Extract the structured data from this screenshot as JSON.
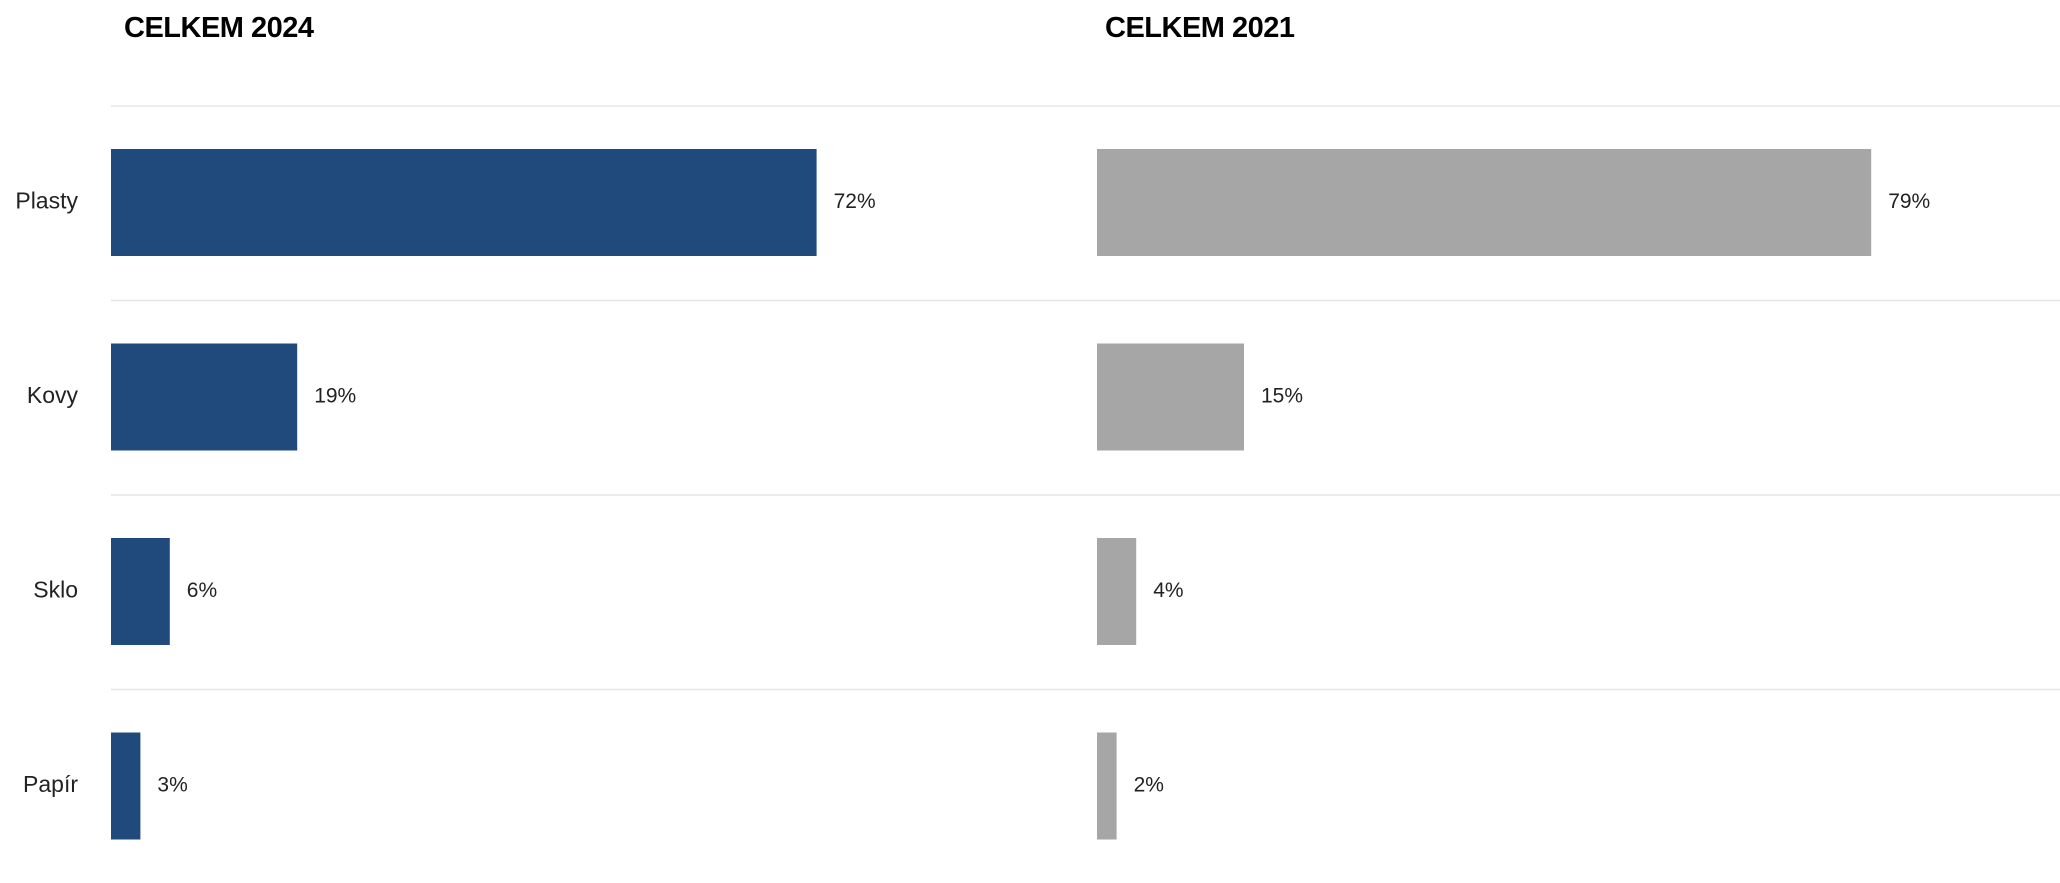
{
  "chart_data": {
    "type": "bar",
    "orientation": "horizontal",
    "categories": [
      "Plasty",
      "Kovy",
      "Sklo",
      "Papír"
    ],
    "series": [
      {
        "title": "CELKEM 2024",
        "values": [
          72,
          19,
          6,
          3
        ],
        "labels": [
          "72%",
          "19%",
          "6%",
          "3%"
        ],
        "color": "#204a7c"
      },
      {
        "title": "CELKEM 2021",
        "values": [
          79,
          15,
          4,
          2
        ],
        "labels": [
          "79%",
          "15%",
          "4%",
          "2%"
        ],
        "color": "#a6a6a6"
      }
    ],
    "xlim": [
      0,
      100
    ],
    "grid": false,
    "legend": "none"
  }
}
